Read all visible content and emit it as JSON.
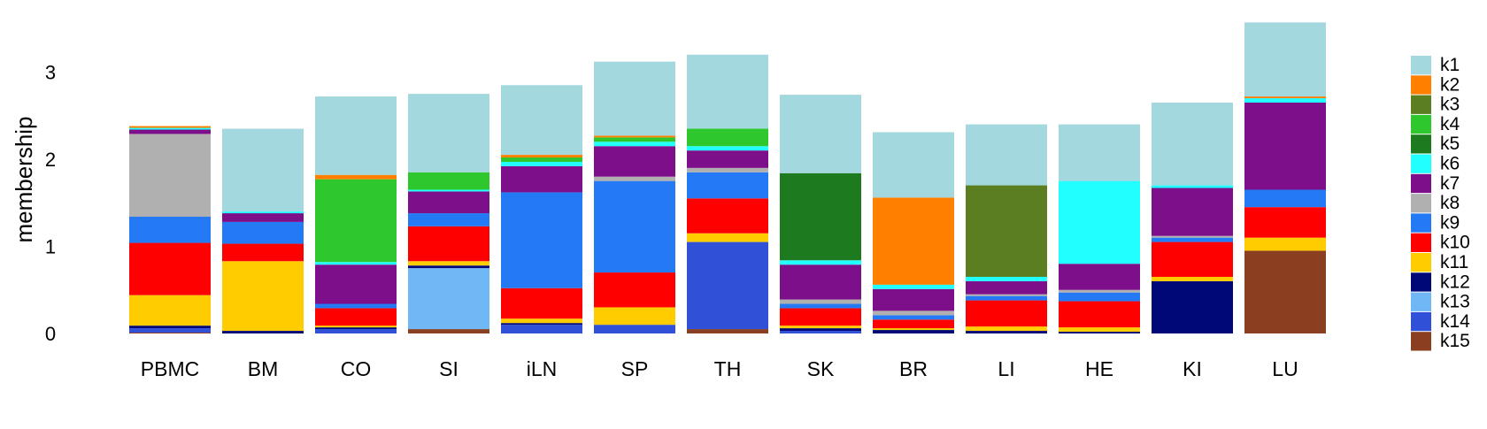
{
  "chart_data": {
    "type": "bar",
    "stacked": true,
    "ylabel": "membership",
    "ylim": [
      0,
      3.6
    ],
    "yticks": [
      0,
      1,
      2,
      3
    ],
    "grid": false,
    "legend_position": "right",
    "categories": [
      "PBMC",
      "BM",
      "CO",
      "SI",
      "iLN",
      "SP",
      "TH",
      "SK",
      "BR",
      "LI",
      "HE",
      "KI",
      "LU"
    ],
    "series": [
      {
        "name": "k1",
        "color": "#a3d8df"
      },
      {
        "name": "k2",
        "color": "#ff7f00"
      },
      {
        "name": "k3",
        "color": "#5b7f20"
      },
      {
        "name": "k4",
        "color": "#2ec82e"
      },
      {
        "name": "k5",
        "color": "#1e7a1e"
      },
      {
        "name": "k6",
        "color": "#22ffff"
      },
      {
        "name": "k7",
        "color": "#7d0f8a"
      },
      {
        "name": "k8",
        "color": "#b0b0b0"
      },
      {
        "name": "k9",
        "color": "#2479f5"
      },
      {
        "name": "k10",
        "color": "#ff0000"
      },
      {
        "name": "k11",
        "color": "#ffcc00"
      },
      {
        "name": "k12",
        "color": "#000878"
      },
      {
        "name": "k13",
        "color": "#70b8f5"
      },
      {
        "name": "k14",
        "color": "#3050d8"
      },
      {
        "name": "k15",
        "color": "#8a4020"
      }
    ],
    "values": [
      [
        0.0,
        0.02,
        0.0,
        0.0,
        0.0,
        0.02,
        0.05,
        0.95,
        0.3,
        0.6,
        0.35,
        0.03,
        0.0,
        0.05,
        0.01
      ],
      [
        0.95,
        0.0,
        0.0,
        0.0,
        0.0,
        0.02,
        0.1,
        0.0,
        0.25,
        0.2,
        0.8,
        0.03,
        0.0,
        0.0,
        0.0
      ],
      [
        0.9,
        0.05,
        0.0,
        0.95,
        0.0,
        0.03,
        0.45,
        0.0,
        0.05,
        0.2,
        0.02,
        0.02,
        0.0,
        0.05,
        0.0
      ],
      [
        0.9,
        0.0,
        0.0,
        0.2,
        0.0,
        0.02,
        0.25,
        0.0,
        0.15,
        0.4,
        0.05,
        0.03,
        0.7,
        0.0,
        0.05
      ],
      [
        0.8,
        0.03,
        0.0,
        0.05,
        0.0,
        0.05,
        0.3,
        0.0,
        1.1,
        0.35,
        0.05,
        0.02,
        0.0,
        0.1,
        0.0
      ],
      [
        0.85,
        0.02,
        0.0,
        0.05,
        0.0,
        0.05,
        0.35,
        0.05,
        1.05,
        0.4,
        0.2,
        0.0,
        0.0,
        0.1,
        0.0
      ],
      [
        0.85,
        0.0,
        0.0,
        0.2,
        0.0,
        0.05,
        0.2,
        0.05,
        0.3,
        0.4,
        0.1,
        0.0,
        0.0,
        1.0,
        0.05
      ],
      [
        0.9,
        0.0,
        0.0,
        0.0,
        1.0,
        0.05,
        0.4,
        0.05,
        0.05,
        0.2,
        0.03,
        0.03,
        0.0,
        0.03,
        0.0
      ],
      [
        0.75,
        1.0,
        0.0,
        0.0,
        0.0,
        0.05,
        0.25,
        0.05,
        0.05,
        0.1,
        0.02,
        0.04,
        0.0,
        0.0,
        0.0
      ],
      [
        0.7,
        0.0,
        1.05,
        0.0,
        0.0,
        0.05,
        0.15,
        0.02,
        0.05,
        0.3,
        0.05,
        0.03,
        0.0,
        0.0,
        0.0
      ],
      [
        0.65,
        0.0,
        0.0,
        0.0,
        0.0,
        0.95,
        0.3,
        0.03,
        0.1,
        0.3,
        0.05,
        0.02,
        0.0,
        0.0,
        0.0
      ],
      [
        0.95,
        0.0,
        0.0,
        0.0,
        0.0,
        0.03,
        0.55,
        0.02,
        0.05,
        0.4,
        0.05,
        0.6,
        0.0,
        0.0,
        0.0
      ],
      [
        0.85,
        0.02,
        0.0,
        0.0,
        0.0,
        0.05,
        1.0,
        0.0,
        0.2,
        0.35,
        0.15,
        0.0,
        0.0,
        0.0,
        0.95
      ]
    ]
  }
}
